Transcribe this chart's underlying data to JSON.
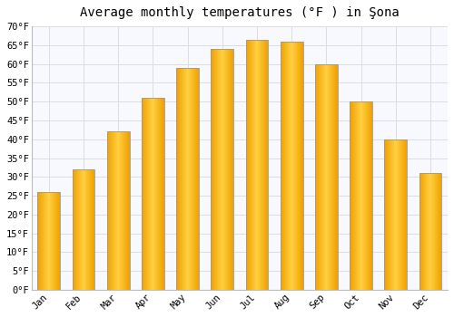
{
  "title": "Average monthly temperatures (°F ) in Şona",
  "months": [
    "Jan",
    "Feb",
    "Mar",
    "Apr",
    "May",
    "Jun",
    "Jul",
    "Aug",
    "Sep",
    "Oct",
    "Nov",
    "Dec"
  ],
  "values": [
    26,
    32,
    42,
    51,
    59,
    64,
    66.5,
    66,
    60,
    50,
    40,
    31
  ],
  "bar_color_center": "#FFD040",
  "bar_color_edge": "#F0A000",
  "bar_border_color": "#999999",
  "background_color": "#ffffff",
  "plot_bg_color": "#f8f8ff",
  "grid_color": "#dddddd",
  "ylim": [
    0,
    70
  ],
  "yticks": [
    0,
    5,
    10,
    15,
    20,
    25,
    30,
    35,
    40,
    45,
    50,
    55,
    60,
    65,
    70
  ],
  "ytick_labels": [
    "0°F",
    "5°F",
    "10°F",
    "15°F",
    "20°F",
    "25°F",
    "30°F",
    "35°F",
    "40°F",
    "45°F",
    "50°F",
    "55°F",
    "60°F",
    "65°F",
    "70°F"
  ],
  "title_fontsize": 10,
  "tick_fontsize": 7.5,
  "figsize": [
    5.0,
    3.5
  ],
  "dpi": 100
}
